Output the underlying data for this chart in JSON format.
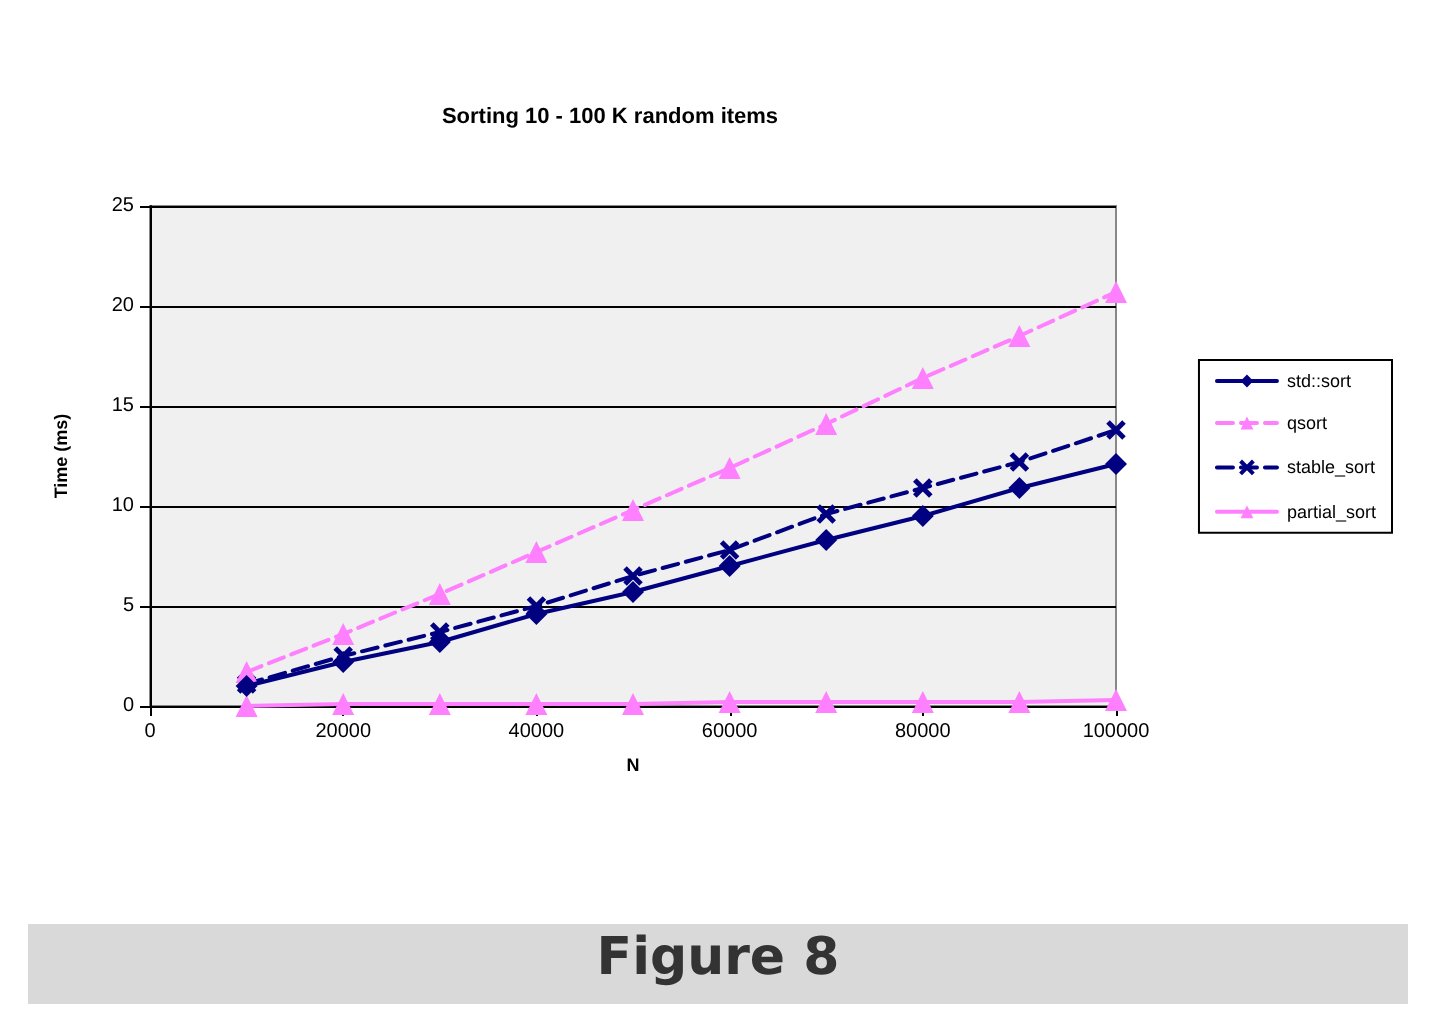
{
  "chart_data": {
    "type": "line",
    "title": "Sorting 10 - 100 K random items",
    "xlabel": "N",
    "ylabel": "Time (ms)",
    "x": [
      10000,
      20000,
      30000,
      40000,
      50000,
      60000,
      70000,
      80000,
      90000,
      100000
    ],
    "series": [
      {
        "name": "std::sort",
        "color": "#000080",
        "marker": "diamond",
        "line_style": "solid",
        "values": [
          1.0,
          2.2,
          3.2,
          4.6,
          5.7,
          7.0,
          8.3,
          9.5,
          10.9,
          12.1
        ]
      },
      {
        "name": "qsort",
        "color": "#ff80ff",
        "marker": "triangle",
        "line_style": "dashed",
        "values": [
          1.7,
          3.6,
          5.6,
          7.7,
          9.8,
          11.9,
          14.1,
          16.4,
          18.5,
          20.7
        ]
      },
      {
        "name": "stable_sort",
        "color": "#000080",
        "marker": "cross",
        "line_style": "dashed",
        "values": [
          1.1,
          2.5,
          3.7,
          5.0,
          6.5,
          7.8,
          9.6,
          10.9,
          12.2,
          13.8
        ]
      },
      {
        "name": "partial_sort",
        "color": "#ff80ff",
        "marker": "triangle",
        "line_style": "solid",
        "values": [
          0.0,
          0.1,
          0.1,
          0.1,
          0.1,
          0.2,
          0.2,
          0.2,
          0.2,
          0.3
        ]
      }
    ],
    "xlim": [
      0,
      100000
    ],
    "xticks": [
      0,
      20000,
      40000,
      60000,
      80000,
      100000
    ],
    "ylim": [
      0,
      25
    ],
    "yticks": [
      0,
      5,
      10,
      15,
      20,
      25
    ],
    "grid": "y",
    "legend": "right",
    "annotations": [
      "Figure 8"
    ]
  }
}
